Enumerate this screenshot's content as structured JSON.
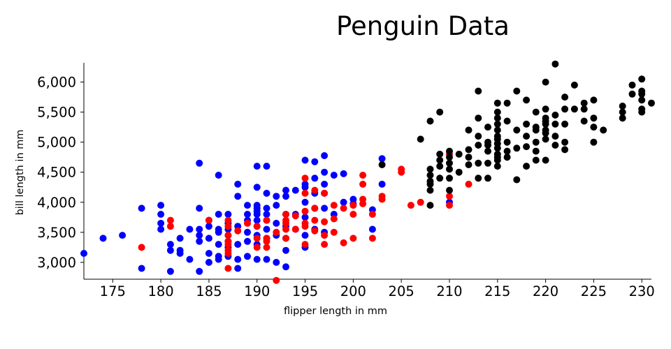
{
  "chart_data": {
    "type": "scatter",
    "title": "Penguin Data",
    "xlabel": "flipper length in mm",
    "ylabel": "bill length in mm",
    "xlim": [
      172,
      231
    ],
    "ylim": [
      2720,
      6320
    ],
    "x_ticks": [
      175,
      180,
      185,
      190,
      195,
      200,
      205,
      210,
      215,
      220,
      225,
      230
    ],
    "x_tick_labels": [
      "175",
      "180",
      "185",
      "190",
      "195",
      "200",
      "205",
      "210",
      "215",
      "220",
      "225",
      "230"
    ],
    "y_ticks": [
      3000,
      3500,
      4000,
      4500,
      5000,
      5500,
      6000
    ],
    "y_tick_labels": [
      "3,000",
      "3,500",
      "4,000",
      "4,500",
      "5,000",
      "5,500",
      "6,000"
    ],
    "grid": false,
    "legend": false,
    "series": [
      {
        "color": "#0000ff",
        "points": [
          [
            172,
            3150
          ],
          [
            174,
            3400
          ],
          [
            176,
            3450
          ],
          [
            178,
            3900
          ],
          [
            178,
            2900
          ],
          [
            180,
            3950
          ],
          [
            180,
            3800
          ],
          [
            180,
            3650
          ],
          [
            180,
            3550
          ],
          [
            181,
            3300
          ],
          [
            181,
            3200
          ],
          [
            181,
            2850
          ],
          [
            182,
            3200
          ],
          [
            182,
            3150
          ],
          [
            182,
            3400
          ],
          [
            183,
            3550
          ],
          [
            183,
            3050
          ],
          [
            184,
            4650
          ],
          [
            184,
            3900
          ],
          [
            184,
            3550
          ],
          [
            184,
            3450
          ],
          [
            184,
            3350
          ],
          [
            184,
            2850
          ],
          [
            185,
            3700
          ],
          [
            185,
            3600
          ],
          [
            185,
            3400
          ],
          [
            185,
            3150
          ],
          [
            185,
            3000
          ],
          [
            186,
            4450
          ],
          [
            186,
            3800
          ],
          [
            186,
            3550
          ],
          [
            186,
            3500
          ],
          [
            186,
            3300
          ],
          [
            186,
            3100
          ],
          [
            186,
            3050
          ],
          [
            187,
            3800
          ],
          [
            187,
            3650
          ],
          [
            187,
            3550
          ],
          [
            187,
            3450
          ],
          [
            187,
            3350
          ],
          [
            187,
            3250
          ],
          [
            187,
            3100
          ],
          [
            188,
            4300
          ],
          [
            188,
            4100
          ],
          [
            188,
            3600
          ],
          [
            188,
            3300
          ],
          [
            188,
            3050
          ],
          [
            188,
            2900
          ],
          [
            189,
            3950
          ],
          [
            189,
            3800
          ],
          [
            189,
            3700
          ],
          [
            189,
            3500
          ],
          [
            189,
            3350
          ],
          [
            189,
            3100
          ],
          [
            190,
            4600
          ],
          [
            190,
            4250
          ],
          [
            190,
            3950
          ],
          [
            190,
            3900
          ],
          [
            190,
            3850
          ],
          [
            190,
            3800
          ],
          [
            190,
            3700
          ],
          [
            190,
            3600
          ],
          [
            190,
            3450
          ],
          [
            190,
            3300
          ],
          [
            190,
            3050
          ],
          [
            191,
            4600
          ],
          [
            191,
            4150
          ],
          [
            191,
            3900
          ],
          [
            191,
            3800
          ],
          [
            191,
            3700
          ],
          [
            191,
            3550
          ],
          [
            191,
            3400
          ],
          [
            191,
            3050
          ],
          [
            192,
            4100
          ],
          [
            192,
            3950
          ],
          [
            192,
            3650
          ],
          [
            192,
            3450
          ],
          [
            192,
            3000
          ],
          [
            193,
            4200
          ],
          [
            193,
            4100
          ],
          [
            193,
            3800
          ],
          [
            193,
            3600
          ],
          [
            193,
            3400
          ],
          [
            193,
            3200
          ],
          [
            193,
            2925
          ],
          [
            194,
            4200
          ],
          [
            194,
            3800
          ],
          [
            194,
            3550
          ],
          [
            195,
            4700
          ],
          [
            195,
            4300
          ],
          [
            195,
            4250
          ],
          [
            195,
            4000
          ],
          [
            195,
            3750
          ],
          [
            195,
            3450
          ],
          [
            195,
            3250
          ],
          [
            196,
            4675
          ],
          [
            196,
            4400
          ],
          [
            196,
            4150
          ],
          [
            196,
            3900
          ],
          [
            196,
            3550
          ],
          [
            197,
            4775
          ],
          [
            197,
            4500
          ],
          [
            197,
            4300
          ],
          [
            197,
            4150
          ],
          [
            197,
            3900
          ],
          [
            197,
            3500
          ],
          [
            198,
            4450
          ],
          [
            198,
            3800
          ],
          [
            199,
            4475
          ],
          [
            199,
            4000
          ],
          [
            200,
            4050
          ],
          [
            200,
            3975
          ],
          [
            202,
            3875
          ],
          [
            202,
            3550
          ],
          [
            203,
            4725
          ],
          [
            203,
            4300
          ],
          [
            210,
            4000
          ]
        ]
      },
      {
        "color": "#ff0000",
        "points": [
          [
            178,
            3250
          ],
          [
            181,
            3700
          ],
          [
            181,
            3600
          ],
          [
            185,
            3700
          ],
          [
            187,
            3700
          ],
          [
            187,
            3600
          ],
          [
            187,
            3450
          ],
          [
            187,
            3350
          ],
          [
            187,
            3300
          ],
          [
            187,
            3200
          ],
          [
            187,
            3150
          ],
          [
            187,
            2900
          ],
          [
            188,
            3525
          ],
          [
            189,
            3650
          ],
          [
            190,
            3600
          ],
          [
            190,
            3400
          ],
          [
            190,
            3250
          ],
          [
            191,
            3700
          ],
          [
            191,
            3400
          ],
          [
            191,
            3350
          ],
          [
            191,
            3250
          ],
          [
            192,
            2700
          ],
          [
            192,
            3500
          ],
          [
            193,
            3800
          ],
          [
            193,
            3700
          ],
          [
            193,
            3650
          ],
          [
            193,
            3550
          ],
          [
            193,
            3400
          ],
          [
            194,
            3775
          ],
          [
            194,
            3550
          ],
          [
            195,
            4400
          ],
          [
            195,
            4150
          ],
          [
            195,
            3850
          ],
          [
            195,
            3650
          ],
          [
            195,
            3600
          ],
          [
            195,
            3300
          ],
          [
            196,
            4200
          ],
          [
            196,
            3900
          ],
          [
            196,
            3700
          ],
          [
            196,
            3525
          ],
          [
            197,
            4150
          ],
          [
            197,
            3675
          ],
          [
            197,
            3450
          ],
          [
            197,
            3300
          ],
          [
            198,
            3950
          ],
          [
            198,
            3725
          ],
          [
            198,
            3500
          ],
          [
            199,
            3900
          ],
          [
            199,
            3325
          ],
          [
            200,
            3950
          ],
          [
            200,
            3800
          ],
          [
            200,
            3400
          ],
          [
            201,
            4450
          ],
          [
            201,
            4300
          ],
          [
            201,
            4050
          ],
          [
            201,
            3975
          ],
          [
            202,
            3800
          ],
          [
            202,
            3400
          ],
          [
            203,
            4100
          ],
          [
            203,
            4050
          ],
          [
            205,
            4550
          ],
          [
            205,
            4500
          ],
          [
            206,
            3950
          ],
          [
            207,
            4000
          ],
          [
            210,
            4800
          ],
          [
            210,
            4100
          ],
          [
            210,
            3950
          ],
          [
            212,
            4300
          ]
        ]
      },
      {
        "color": "#000000",
        "points": [
          [
            203,
            4625
          ],
          [
            207,
            5050
          ],
          [
            208,
            5350
          ],
          [
            208,
            4550
          ],
          [
            208,
            4450
          ],
          [
            208,
            4350
          ],
          [
            208,
            4300
          ],
          [
            208,
            4200
          ],
          [
            208,
            3950
          ],
          [
            209,
            5500
          ],
          [
            209,
            4800
          ],
          [
            209,
            4700
          ],
          [
            209,
            4600
          ],
          [
            209,
            4400
          ],
          [
            210,
            4850
          ],
          [
            210,
            4750
          ],
          [
            210,
            4650
          ],
          [
            210,
            4550
          ],
          [
            210,
            4400
          ],
          [
            210,
            4200
          ],
          [
            211,
            4800
          ],
          [
            211,
            4500
          ],
          [
            212,
            5200
          ],
          [
            212,
            4875
          ],
          [
            212,
            4750
          ],
          [
            212,
            4625
          ],
          [
            213,
            5850
          ],
          [
            213,
            5400
          ],
          [
            213,
            5100
          ],
          [
            213,
            4950
          ],
          [
            213,
            4650
          ],
          [
            213,
            4400
          ],
          [
            214,
            5250
          ],
          [
            214,
            5000
          ],
          [
            214,
            4950
          ],
          [
            214,
            4850
          ],
          [
            214,
            4650
          ],
          [
            214,
            4400
          ],
          [
            215,
            5650
          ],
          [
            215,
            5500
          ],
          [
            215,
            5400
          ],
          [
            215,
            5300
          ],
          [
            215,
            5200
          ],
          [
            215,
            5100
          ],
          [
            215,
            5050
          ],
          [
            215,
            4975
          ],
          [
            215,
            4900
          ],
          [
            215,
            4800
          ],
          [
            215,
            4750
          ],
          [
            215,
            4700
          ],
          [
            215,
            4600
          ],
          [
            216,
            5650
          ],
          [
            216,
            5350
          ],
          [
            216,
            5000
          ],
          [
            216,
            4850
          ],
          [
            216,
            4750
          ],
          [
            217,
            5850
          ],
          [
            217,
            5200
          ],
          [
            217,
            4900
          ],
          [
            217,
            4375
          ],
          [
            218,
            5700
          ],
          [
            218,
            5300
          ],
          [
            218,
            5100
          ],
          [
            218,
            4925
          ],
          [
            218,
            4600
          ],
          [
            219,
            5500
          ],
          [
            219,
            5250
          ],
          [
            219,
            5200
          ],
          [
            219,
            5000
          ],
          [
            219,
            4850
          ],
          [
            219,
            4700
          ],
          [
            220,
            6000
          ],
          [
            220,
            5550
          ],
          [
            220,
            5400
          ],
          [
            220,
            5350
          ],
          [
            220,
            5300
          ],
          [
            220,
            5200
          ],
          [
            220,
            5150
          ],
          [
            220,
            5050
          ],
          [
            220,
            4700
          ],
          [
            221,
            6300
          ],
          [
            221,
            5450
          ],
          [
            221,
            5300
          ],
          [
            221,
            5100
          ],
          [
            221,
            4950
          ],
          [
            222,
            5750
          ],
          [
            222,
            5550
          ],
          [
            222,
            5300
          ],
          [
            222,
            5000
          ],
          [
            222,
            4875
          ],
          [
            223,
            5950
          ],
          [
            223,
            5550
          ],
          [
            224,
            5650
          ],
          [
            224,
            5550
          ],
          [
            224,
            5350
          ],
          [
            225,
            5700
          ],
          [
            225,
            5400
          ],
          [
            225,
            5250
          ],
          [
            225,
            5000
          ],
          [
            226,
            5200
          ],
          [
            228,
            5600
          ],
          [
            228,
            5500
          ],
          [
            228,
            5400
          ],
          [
            229,
            5950
          ],
          [
            229,
            5800
          ],
          [
            230,
            6050
          ],
          [
            230,
            5850
          ],
          [
            230,
            5800
          ],
          [
            230,
            5700
          ],
          [
            230,
            5550
          ],
          [
            230,
            5500
          ],
          [
            231,
            5650
          ]
        ]
      }
    ]
  }
}
